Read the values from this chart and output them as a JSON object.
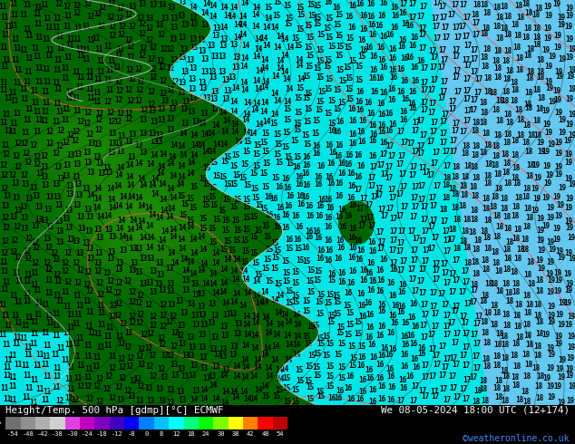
{
  "title_left": "Height/Temp. 500 hPa [gdmp][°C] ECMWF",
  "title_right": "We 08-05-2024 18:00 UTC (12+174)",
  "credit": "©weatheronline.co.uk",
  "colorbar_levels": [
    -54,
    -48,
    -42,
    -38,
    -30,
    -24,
    -18,
    -12,
    -8,
    0,
    8,
    12,
    18,
    24,
    30,
    38,
    42,
    48,
    54
  ],
  "colorbar_colors": [
    "#707070",
    "#909090",
    "#b0b0b0",
    "#d0d0d0",
    "#e040e0",
    "#c000c0",
    "#8000c0",
    "#4000c0",
    "#0000ff",
    "#0080ff",
    "#00c0ff",
    "#00ffff",
    "#00ff80",
    "#00ff00",
    "#80ff00",
    "#ffff00",
    "#ff8000",
    "#ff0000",
    "#c00000"
  ],
  "colorbar_tick_labels": [
    "-54",
    "-48",
    "-42",
    "-38",
    "-30",
    "-24",
    "-18",
    "-12",
    "-8",
    "0",
    "8",
    "12",
    "18",
    "24",
    "30",
    "38",
    "42",
    "48",
    "54"
  ],
  "bottom_bar_color": "#000000",
  "text_color_left": "#ffffff",
  "text_color_right": "#ffffff",
  "credit_color": "#4488ff",
  "map_bg_green_dark": [
    0,
    100,
    0
  ],
  "map_bg_green_mid": [
    0,
    140,
    0
  ],
  "map_bg_green_light": [
    40,
    160,
    40
  ],
  "map_bg_cyan": [
    0,
    230,
    230
  ],
  "map_bg_blue": [
    100,
    200,
    240
  ],
  "label_color": "#000000",
  "coastline_color": "#c8c8c8",
  "contour_black_color": "#000000",
  "contour_pink_color": "#ff6060",
  "label_fontsize": 5.5,
  "coast_color": "#d0d0d0"
}
